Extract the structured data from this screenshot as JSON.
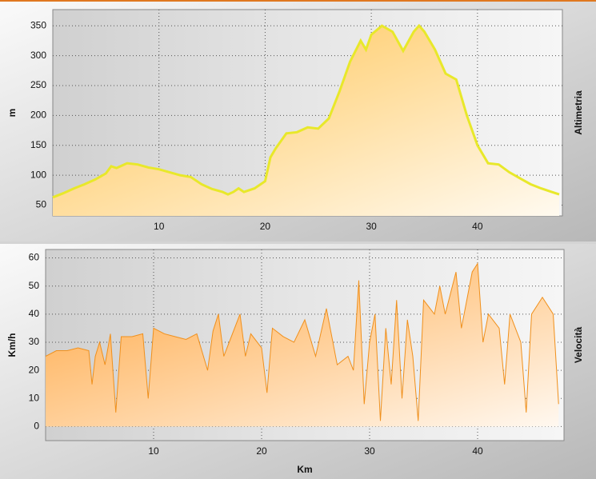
{
  "chart_data": [
    {
      "type": "area",
      "ylabel": "m",
      "side_label": "Altimetria",
      "color": "#ffc24d",
      "line_color": "#e8e82a",
      "grid": true,
      "xlim": [
        0,
        48
      ],
      "xticks": [
        10,
        20,
        30,
        40
      ],
      "ylim": [
        32,
        377
      ],
      "yticks": [
        50,
        100,
        150,
        200,
        250,
        300,
        350
      ],
      "x": [
        0,
        1,
        2,
        3,
        4,
        5,
        5.5,
        6,
        7,
        8,
        9,
        10,
        11,
        12,
        13,
        14,
        15,
        16,
        16.5,
        17,
        17.5,
        18,
        19,
        20,
        20.5,
        21,
        22,
        23,
        24,
        25,
        26,
        27,
        28,
        29,
        29.5,
        30,
        31,
        32,
        33,
        34,
        34.5,
        35,
        36,
        37,
        38,
        39,
        40,
        41,
        42,
        43,
        44,
        45,
        46,
        47,
        47.7
      ],
      "values": [
        63,
        70,
        78,
        85,
        93,
        103,
        115,
        112,
        120,
        118,
        113,
        110,
        105,
        100,
        97,
        85,
        77,
        72,
        68,
        72,
        78,
        72,
        78,
        90,
        130,
        145,
        170,
        172,
        180,
        178,
        195,
        240,
        290,
        325,
        310,
        335,
        350,
        340,
        308,
        340,
        350,
        340,
        310,
        270,
        260,
        200,
        150,
        120,
        118,
        105,
        95,
        85,
        78,
        72,
        68
      ]
    },
    {
      "type": "area",
      "ylabel": "Km/h",
      "xlabel": "Km",
      "side_label": "Velocità",
      "color": "#ffa640",
      "line_color": "#f0901c",
      "grid": true,
      "xlim": [
        0,
        48
      ],
      "xticks": [
        10,
        20,
        30,
        40
      ],
      "ylim": [
        -5,
        63
      ],
      "yticks": [
        0,
        10,
        20,
        30,
        40,
        50,
        60
      ],
      "x": [
        0,
        1,
        2,
        3,
        4,
        4.3,
        4.6,
        5,
        5.5,
        6,
        6.5,
        7,
        8,
        9,
        9.5,
        10,
        11,
        12,
        13,
        14,
        15,
        15.5,
        16,
        16.5,
        17,
        18,
        18.5,
        19,
        20,
        20.5,
        21,
        22,
        23,
        24,
        25,
        26,
        27,
        28,
        28.5,
        29,
        29.5,
        30,
        30.5,
        31,
        31.5,
        32,
        32.5,
        33,
        33.5,
        34,
        34.5,
        35,
        36,
        36.5,
        37,
        38,
        38.5,
        39,
        39.5,
        40,
        40.5,
        41,
        42,
        42.5,
        43,
        44,
        44.5,
        45,
        46,
        47,
        47.5
      ],
      "values": [
        25,
        27,
        27,
        28,
        27,
        15,
        25,
        30,
        22,
        33,
        5,
        32,
        32,
        33,
        10,
        35,
        33,
        32,
        31,
        33,
        20,
        34,
        40,
        25,
        30,
        40,
        25,
        33,
        28,
        12,
        35,
        32,
        30,
        38,
        25,
        42,
        22,
        25,
        20,
        52,
        8,
        30,
        40,
        2,
        35,
        15,
        45,
        10,
        38,
        25,
        2,
        45,
        40,
        50,
        40,
        55,
        35,
        45,
        55,
        58,
        30,
        40,
        35,
        15,
        40,
        30,
        5,
        40,
        46,
        40,
        8
      ]
    }
  ]
}
